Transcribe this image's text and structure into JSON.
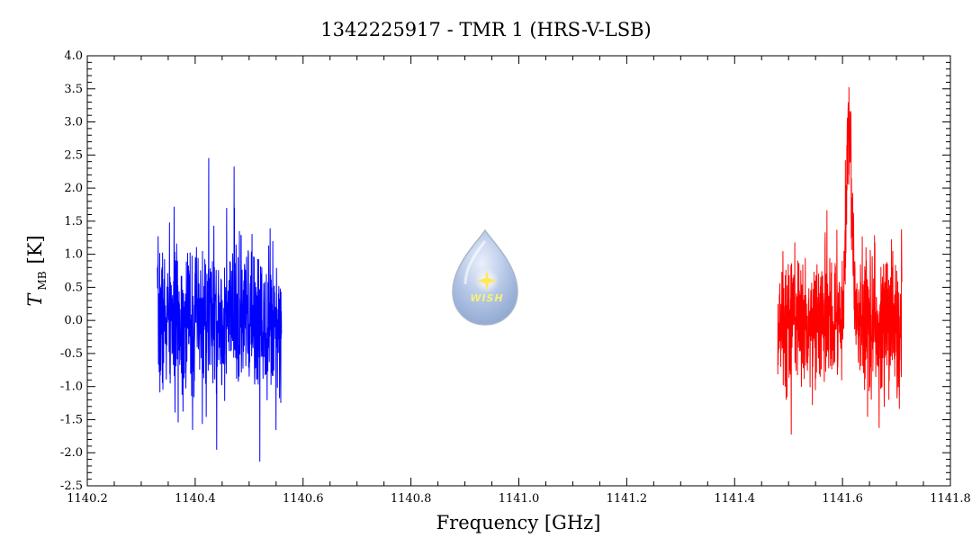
{
  "chart_data": {
    "type": "line",
    "title": "1342225917 - TMR 1 (HRS-V-LSB)",
    "xlabel": "Frequency [GHz]",
    "ylabel_main": "T",
    "ylabel_sub": "MB",
    "ylabel_unit": "[K]",
    "xlim": [
      1140.2,
      1141.8
    ],
    "ylim": [
      -2.5,
      4.0
    ],
    "x_ticks": [
      "1140.2",
      "1140.4",
      "1140.6",
      "1140.8",
      "1141.0",
      "1141.2",
      "1141.4",
      "1141.6",
      "1141.8"
    ],
    "y_ticks": [
      "-2.5",
      "-2.0",
      "-1.5",
      "-1.0",
      "-0.5",
      "0.0",
      "0.5",
      "1.0",
      "1.5",
      "2.0",
      "2.5",
      "3.0",
      "3.5",
      "4.0"
    ],
    "x_minor_step": 0.05,
    "y_minor_step": 0.1,
    "grid": false,
    "series": [
      {
        "color": "#0000ff",
        "x_range": [
          1140.33,
          1140.56
        ],
        "noise_rms": 0.55,
        "points": 700,
        "seed": 7,
        "spikes": [
          {
            "x": 1140.425,
            "y": 2.45
          },
          {
            "x": 1140.472,
            "y": 2.32
          },
          {
            "x": 1140.52,
            "y": 2.2
          },
          {
            "x": 1140.44,
            "y": -1.95
          },
          {
            "x": 1140.52,
            "y": -2.13
          },
          {
            "x": 1140.395,
            "y": -1.65
          }
        ]
      },
      {
        "color": "#ff0000",
        "x_range": [
          1141.48,
          1141.71
        ],
        "noise_rms": 0.5,
        "points": 700,
        "seed": 13,
        "line": {
          "center": 1141.612,
          "amplitude": 2.9,
          "fwhm": 0.012
        },
        "spikes": [
          {
            "x": 1141.612,
            "y": 3.52
          },
          {
            "x": 1141.505,
            "y": -1.72
          },
          {
            "x": 1141.668,
            "y": -1.62
          }
        ]
      }
    ]
  },
  "logo": {
    "text": "WISH",
    "icon": "water-drop-star-icon"
  }
}
